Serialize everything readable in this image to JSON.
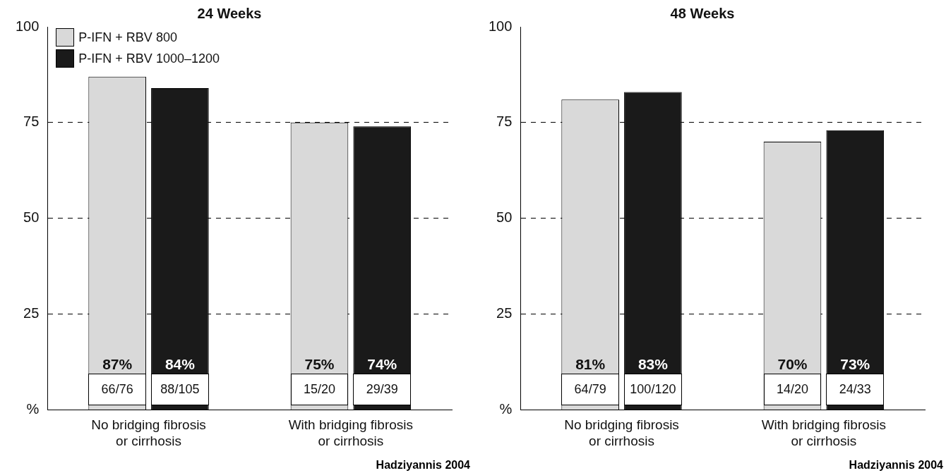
{
  "chart_data": [
    {
      "type": "bar",
      "title": "24 Weeks",
      "categories": [
        "No bridging fibrosis\nor cirrhosis",
        "With bridging fibrosis\nor cirrhosis"
      ],
      "series": [
        {
          "name": "P-IFN + RBV 800",
          "color": "#d9d9d9",
          "values": [
            87,
            75
          ],
          "value_labels": [
            "87%",
            "75%"
          ]
        },
        {
          "name": "P-IFN + RBV 1000–1200",
          "color": "#1a1a1a",
          "values": [
            84,
            74
          ],
          "value_labels": [
            "84%",
            "74%"
          ]
        }
      ],
      "ylim": [
        0,
        100
      ],
      "yticks": [
        {
          "value": 0,
          "label": "%"
        },
        25,
        50,
        75,
        100
      ],
      "grid": "y",
      "line_style": "dashed",
      "legend": "top left",
      "annotations": [
        "66/76",
        "88/105",
        "15/20",
        "29/39",
        "Hadziyannis 2004"
      ]
    },
    {
      "type": "bar",
      "title": "48 Weeks",
      "categories": [
        "No bridging fibrosis\nor cirrhosis",
        "With bridging fibrosis\nor cirrhosis"
      ],
      "series": [
        {
          "color": "#d9d9d9",
          "values": [
            81,
            70
          ],
          "value_labels": [
            "81%",
            "70%"
          ]
        },
        {
          "color": "#1a1a1a",
          "values": [
            83,
            73
          ],
          "value_labels": [
            "83%",
            "73%"
          ]
        }
      ],
      "ylim": [
        0,
        100
      ],
      "yticks": [
        {
          "value": 0,
          "label": "%"
        },
        25,
        50,
        75,
        100
      ],
      "grid": "y",
      "line_style": "dashed",
      "legend": false,
      "annotations": [
        "64/79",
        "100/120",
        "14/20",
        "24/33",
        "Hadziyannis 2004"
      ]
    }
  ]
}
